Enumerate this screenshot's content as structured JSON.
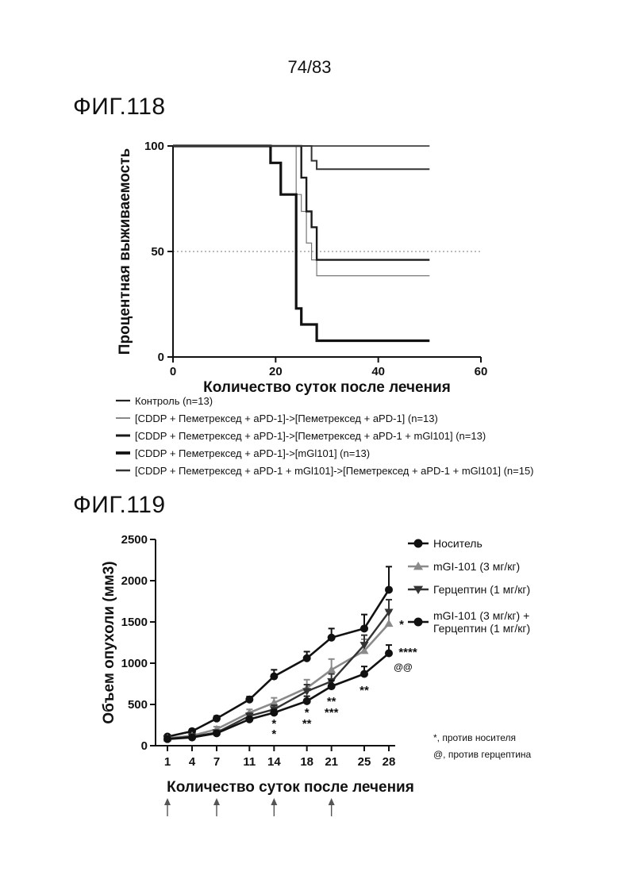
{
  "page_number": "74/83",
  "figure1": {
    "title": "ФИГ.118"
  },
  "figure2": {
    "title": "ФИГ.119",
    "significance_notes": [
      "*, против носителя",
      "@, против герцептина"
    ]
  },
  "chart_data": [
    {
      "type": "line",
      "subtype": "kaplan-meier",
      "xlabel": "Количество суток после лечения",
      "ylabel": "Процентная выживаемость",
      "xlim": [
        0,
        60
      ],
      "ylim": [
        0,
        100
      ],
      "xticks": [
        0,
        20,
        40,
        60
      ],
      "yticks": [
        0,
        50,
        100
      ],
      "reference_line": {
        "y": 50,
        "style": "dotted"
      },
      "legend_position": "bottom",
      "series": [
        {
          "name": "Контроль (n=13)",
          "color": "#222222",
          "steps": [
            [
              0,
              100
            ],
            [
              50,
              100
            ]
          ]
        },
        {
          "name": "[CDDP + Пеметрексед + aPD-1]->[Пеметрексед + aPD-1] (n=13)",
          "color": "#777777",
          "steps": [
            [
              0,
              100
            ],
            [
              24,
              100
            ],
            [
              24,
              77
            ],
            [
              25,
              77
            ],
            [
              25,
              69
            ],
            [
              26,
              69
            ],
            [
              26,
              54
            ],
            [
              27,
              54
            ],
            [
              27,
              46
            ],
            [
              28,
              46
            ],
            [
              28,
              38.5
            ],
            [
              50,
              38.5
            ]
          ]
        },
        {
          "name": "[CDDP + Пеметрексед + aPD-1]->[Пеметрексед + aPD-1 + mGl101] (n=13)",
          "color": "#1a1a1a",
          "steps": [
            [
              0,
              100
            ],
            [
              25,
              100
            ],
            [
              25,
              85
            ],
            [
              26,
              85
            ],
            [
              26,
              69
            ],
            [
              27,
              69
            ],
            [
              27,
              61.5
            ],
            [
              28,
              61.5
            ],
            [
              28,
              46
            ],
            [
              50,
              46
            ]
          ]
        },
        {
          "name": "[CDDP + Пеметрексед + aPD-1]->[mGl101] (n=13)",
          "color": "#111111",
          "steps": [
            [
              0,
              100
            ],
            [
              19,
              100
            ],
            [
              19,
              92
            ],
            [
              21,
              92
            ],
            [
              21,
              77
            ],
            [
              24,
              77
            ],
            [
              24,
              23
            ],
            [
              25,
              23
            ],
            [
              25,
              15.4
            ],
            [
              28,
              15.4
            ],
            [
              28,
              7.7
            ],
            [
              50,
              7.7
            ]
          ]
        },
        {
          "name": "[CDDP + Пеметрексед + aPD-1 + mGl101]->[Пеметрексед + aPD-1 + mGl101] (n=15)",
          "color": "#333333",
          "steps": [
            [
              0,
              100
            ],
            [
              27,
              100
            ],
            [
              27,
              93
            ],
            [
              28,
              93
            ],
            [
              28,
              89
            ],
            [
              50,
              89
            ]
          ]
        }
      ]
    },
    {
      "type": "line",
      "xlabel": "Количество суток после лечения",
      "ylabel": "Объем опухоли (мм3)",
      "ylim": [
        0,
        2500
      ],
      "yticks": [
        0,
        500,
        1000,
        1500,
        2000,
        2500
      ],
      "categories": [
        "1",
        "4",
        "7",
        "11",
        "14",
        "18",
        "21",
        "25",
        "28"
      ],
      "legend_position": "top-right",
      "treatment_days": [
        "1",
        "7",
        "14",
        "21"
      ],
      "series": [
        {
          "name": "Носитель",
          "color": "#111111",
          "marker": "circle",
          "values": [
            110,
            175,
            330,
            560,
            840,
            1060,
            1310,
            1420,
            1890
          ],
          "errors": [
            15,
            25,
            30,
            35,
            80,
            80,
            110,
            170,
            280
          ]
        },
        {
          "name": "mGI-101 (3 мг/кг)",
          "color": "#8a8a8a",
          "marker": "triangle-up",
          "values": [
            90,
            120,
            200,
            400,
            520,
            700,
            920,
            1150,
            1480
          ],
          "errors": [
            12,
            20,
            30,
            40,
            60,
            100,
            130,
            140,
            150
          ]
        },
        {
          "name": "Герцептин (1 мг/кг)",
          "color": "#333333",
          "marker": "triangle-down",
          "values": [
            85,
            110,
            160,
            360,
            440,
            660,
            780,
            1220,
            1620
          ],
          "errors": [
            10,
            15,
            25,
            35,
            50,
            80,
            90,
            120,
            150
          ]
        },
        {
          "name": "mGI-101 (3 мг/кг) + Герцептин (1 мг/кг)",
          "color": "#111111",
          "marker": "circle",
          "values": [
            80,
            100,
            150,
            320,
            400,
            540,
            720,
            870,
            1120
          ],
          "errors": [
            10,
            12,
            20,
            25,
            40,
            60,
            70,
            90,
            100
          ]
        }
      ],
      "annotations": [
        {
          "x": "14",
          "text": "*"
        },
        {
          "x": "14",
          "text": "*"
        },
        {
          "x": "18",
          "text": "*"
        },
        {
          "x": "18",
          "text": "**"
        },
        {
          "x": "21",
          "text": "**"
        },
        {
          "x": "21",
          "text": "***"
        },
        {
          "x": "25",
          "text": "**"
        },
        {
          "x": "28",
          "text": "*"
        },
        {
          "x": "28",
          "text": "****"
        },
        {
          "x": "28",
          "text": "@@"
        }
      ]
    }
  ]
}
